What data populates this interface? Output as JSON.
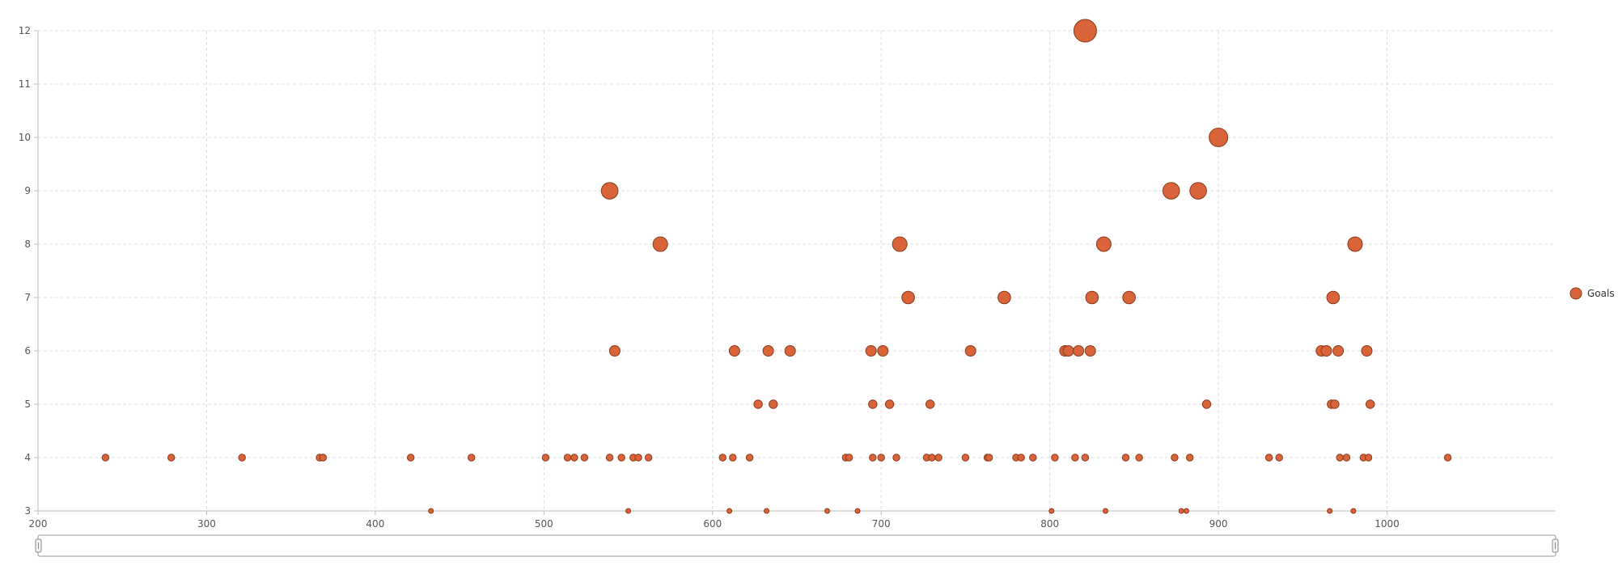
{
  "chart_data": {
    "type": "scatter",
    "title": "",
    "xlabel": "",
    "ylabel": "",
    "xlim": [
      200,
      1100
    ],
    "ylim": [
      3,
      12
    ],
    "x_ticks": [
      200,
      300,
      400,
      500,
      600,
      700,
      800,
      900,
      1000
    ],
    "y_ticks": [
      3,
      4,
      5,
      6,
      7,
      8,
      9,
      10,
      11,
      12
    ],
    "grid": true,
    "legend_position": "right",
    "bubble_size_encodes": "y",
    "series": [
      {
        "name": "Goals",
        "color": "#d9643a",
        "points": [
          [
            240,
            4
          ],
          [
            279,
            4
          ],
          [
            321,
            4
          ],
          [
            367,
            4
          ],
          [
            369,
            4
          ],
          [
            421,
            4
          ],
          [
            457,
            4
          ],
          [
            433,
            3
          ],
          [
            501,
            4
          ],
          [
            514,
            4
          ],
          [
            518,
            4
          ],
          [
            524,
            4
          ],
          [
            539,
            4
          ],
          [
            546,
            4
          ],
          [
            553,
            4
          ],
          [
            556,
            4
          ],
          [
            562,
            4
          ],
          [
            539,
            9
          ],
          [
            542,
            6
          ],
          [
            550,
            3
          ],
          [
            569,
            8
          ],
          [
            606,
            4
          ],
          [
            612,
            4
          ],
          [
            622,
            4
          ],
          [
            610,
            3
          ],
          [
            613,
            6
          ],
          [
            627,
            5
          ],
          [
            632,
            3
          ],
          [
            633,
            6
          ],
          [
            636,
            5
          ],
          [
            646,
            6
          ],
          [
            668,
            3
          ],
          [
            679,
            4
          ],
          [
            681,
            4
          ],
          [
            686,
            3
          ],
          [
            694,
            6
          ],
          [
            695,
            5
          ],
          [
            695,
            4
          ],
          [
            700,
            4
          ],
          [
            701,
            6
          ],
          [
            705,
            5
          ],
          [
            709,
            4
          ],
          [
            711,
            8
          ],
          [
            716,
            7
          ],
          [
            727,
            4
          ],
          [
            729,
            5
          ],
          [
            730,
            4
          ],
          [
            734,
            4
          ],
          [
            750,
            4
          ],
          [
            753,
            6
          ],
          [
            763,
            4
          ],
          [
            764,
            4
          ],
          [
            773,
            7
          ],
          [
            780,
            4
          ],
          [
            783,
            4
          ],
          [
            790,
            4
          ],
          [
            801,
            3
          ],
          [
            803,
            4
          ],
          [
            809,
            6
          ],
          [
            811,
            6
          ],
          [
            815,
            4
          ],
          [
            817,
            6
          ],
          [
            821,
            4
          ],
          [
            821,
            12
          ],
          [
            824,
            6
          ],
          [
            825,
            7
          ],
          [
            832,
            8
          ],
          [
            833,
            3
          ],
          [
            845,
            4
          ],
          [
            847,
            7
          ],
          [
            853,
            4
          ],
          [
            872,
            9
          ],
          [
            874,
            4
          ],
          [
            878,
            3
          ],
          [
            881,
            3
          ],
          [
            883,
            4
          ],
          [
            888,
            9
          ],
          [
            893,
            5
          ],
          [
            900,
            10
          ],
          [
            930,
            4
          ],
          [
            936,
            4
          ],
          [
            961,
            6
          ],
          [
            964,
            6
          ],
          [
            966,
            3
          ],
          [
            967,
            5
          ],
          [
            968,
            7
          ],
          [
            969,
            5
          ],
          [
            971,
            6
          ],
          [
            972,
            4
          ],
          [
            976,
            4
          ],
          [
            980,
            3
          ],
          [
            981,
            8
          ],
          [
            986,
            4
          ],
          [
            988,
            6
          ],
          [
            989,
            4
          ],
          [
            990,
            5
          ],
          [
            1036,
            4
          ]
        ]
      }
    ]
  }
}
